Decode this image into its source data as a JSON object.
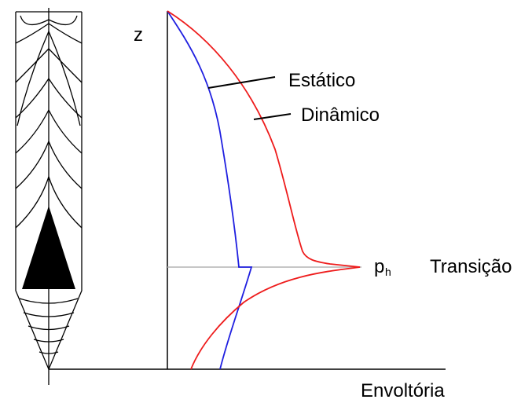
{
  "labels": {
    "z_axis": "z",
    "static": "Estático",
    "dynamic": "Dinâmico",
    "p_main": "p",
    "p_sub": "h",
    "transition": "Transição",
    "envelope": "Envoltória"
  },
  "colors": {
    "static_curve": "#1f1fe0",
    "dynamic_curve": "#ee1c1c",
    "transition_line": "#b4b4b4",
    "ink": "#000000",
    "background": "#ffffff"
  }
}
